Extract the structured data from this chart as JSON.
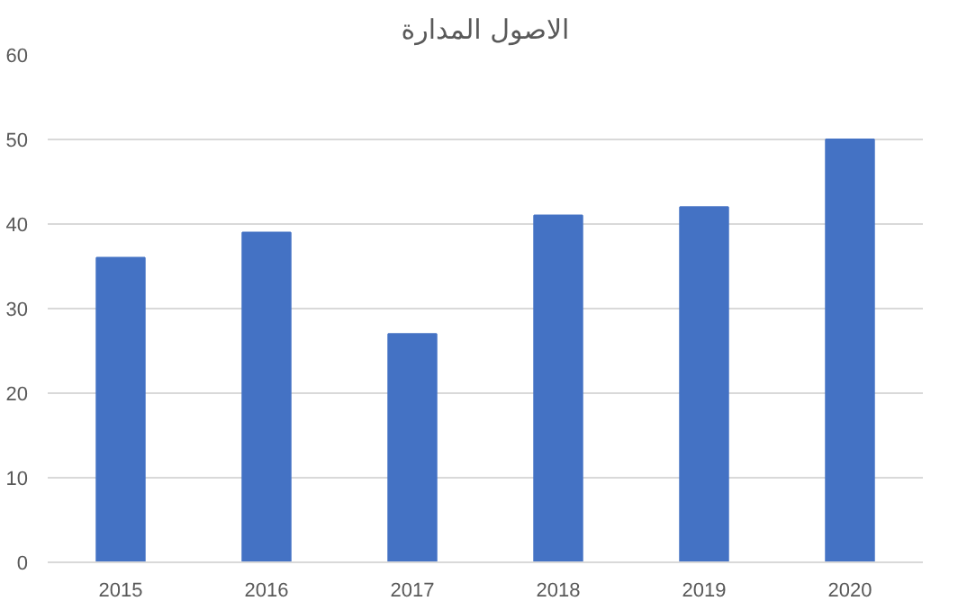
{
  "chart_data": {
    "type": "bar",
    "title": "الاصول المدارة",
    "categories": [
      "2015",
      "2016",
      "2017",
      "2018",
      "2019",
      "2020"
    ],
    "values": [
      36,
      39,
      27,
      41,
      42,
      50
    ],
    "color": "#4472c4",
    "ylim": [
      0,
      60
    ],
    "yticks": [
      0,
      10,
      20,
      30,
      40,
      50,
      60
    ],
    "grid": "y"
  }
}
